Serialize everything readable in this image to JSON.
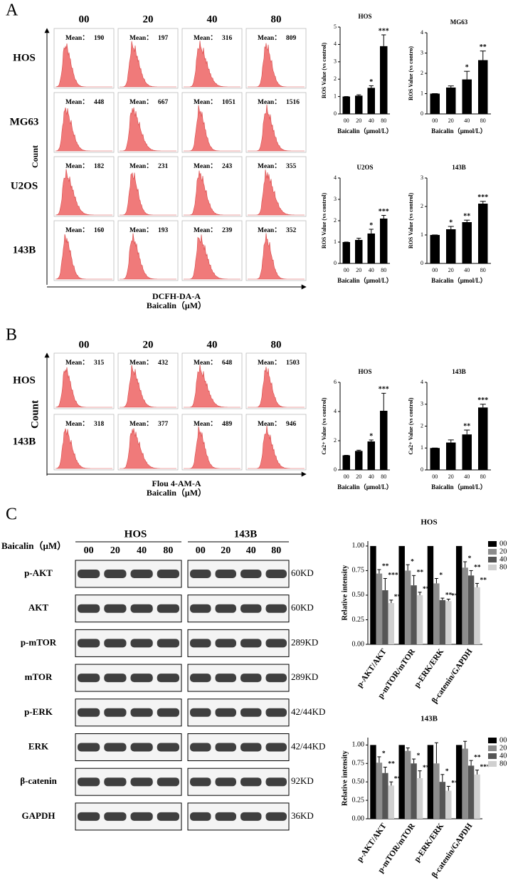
{
  "panel_labels": [
    "A",
    "B",
    "C"
  ],
  "mean_label": "Mean：",
  "flow_cytometry": [
    {
      "columns": [
        "00",
        "20",
        "40",
        "80"
      ],
      "rows": [
        {
          "name": "HOS",
          "means": [
            190,
            197,
            316,
            809
          ]
        },
        {
          "name": "MG63",
          "means": [
            448,
            667,
            1051,
            1516
          ]
        },
        {
          "name": "U2OS",
          "means": [
            182,
            231,
            243,
            355
          ]
        },
        {
          "name": "143B",
          "means": [
            160,
            193,
            239,
            352
          ]
        }
      ],
      "ylabel": "Count",
      "xlabel": "DCFH-DA-A",
      "xlabel2": "Baicalin（μM）"
    },
    {
      "columns": [
        "00",
        "20",
        "40",
        "80"
      ],
      "rows": [
        {
          "name": "HOS",
          "means": [
            315,
            432,
            648,
            1503
          ]
        },
        {
          "name": "143B",
          "means": [
            318,
            377,
            489,
            946
          ]
        }
      ],
      "ylabel": "Count",
      "xlabel": "Flou 4-AM-A",
      "xlabel2": "Baicalin（μM）"
    }
  ],
  "blots": {
    "treatment_label": "Baicalin（μM）",
    "groups": [
      "HOS",
      "143B"
    ],
    "lanes": [
      "00",
      "20",
      "40",
      "80"
    ],
    "proteins": [
      "p-AKT",
      "AKT",
      "p-mTOR",
      "mTOR",
      "p-ERK",
      "ERK",
      "β-catenin",
      "GAPDH"
    ],
    "sizes": [
      "60KD",
      "60KD",
      "289KD",
      "289KD",
      "42/44KD",
      "42/44KD",
      "92KD",
      "36KD"
    ]
  },
  "chart_data": [
    {
      "type": "bar",
      "title": "HOS",
      "ylabel": "ROS Value (vs control)",
      "xlabel": "Baicalin（μmol/L）",
      "categories": [
        "00",
        "20",
        "40",
        "80"
      ],
      "values": [
        1,
        1.05,
        1.5,
        3.9
      ],
      "errors": [
        0,
        0.05,
        0.12,
        0.65
      ],
      "annotations": [
        null,
        null,
        "*",
        "***"
      ],
      "color": "#000000",
      "ylim": [
        0,
        5
      ],
      "yticks": [
        0,
        1,
        2,
        3,
        4,
        5
      ]
    },
    {
      "type": "bar",
      "title": "MG63",
      "ylabel": "ROS Value (vs contro)",
      "xlabel": "Baicalin（μmol/L）",
      "categories": [
        "00",
        "20",
        "40",
        "80"
      ],
      "values": [
        1,
        1.3,
        1.7,
        2.65
      ],
      "errors": [
        0,
        0.08,
        0.4,
        0.45
      ],
      "annotations": [
        null,
        null,
        "*",
        "**"
      ],
      "color": "#000000",
      "ylim": [
        0,
        4
      ],
      "yticks": [
        0,
        1,
        2,
        3,
        4
      ]
    },
    {
      "type": "bar",
      "title": "U2OS",
      "ylabel": "ROS Value (vs control)",
      "xlabel": "Baicalin（μmol/L）",
      "categories": [
        "00",
        "20",
        "40",
        "80"
      ],
      "values": [
        1,
        1.1,
        1.4,
        2.1
      ],
      "errors": [
        0,
        0.08,
        0.2,
        0.15
      ],
      "annotations": [
        null,
        null,
        "*",
        "***"
      ],
      "color": "#000000",
      "ylim": [
        0,
        4
      ],
      "yticks": [
        0,
        1,
        2,
        3,
        4
      ]
    },
    {
      "type": "bar",
      "title": "143B",
      "ylabel": "ROS Value (vs control)",
      "xlabel": "Baicalin（μmol/L）",
      "categories": [
        "00",
        "20",
        "40",
        "80"
      ],
      "values": [
        1,
        1.2,
        1.45,
        2.1
      ],
      "errors": [
        0,
        0.1,
        0.07,
        0.08
      ],
      "annotations": [
        null,
        "*",
        "**",
        "***"
      ],
      "color": "#000000",
      "ylim": [
        0,
        3
      ],
      "yticks": [
        0,
        1,
        2,
        3
      ]
    },
    {
      "type": "bar",
      "title": "HOS",
      "ylabel": "Ca2+ Value (vs control)",
      "xlabel": "Baicalin（μmol/L）",
      "categories": [
        "00",
        "20",
        "40",
        "80"
      ],
      "values": [
        1,
        1.3,
        1.95,
        4.05
      ],
      "errors": [
        0,
        0.05,
        0.1,
        1.2
      ],
      "annotations": [
        null,
        null,
        "*",
        "***"
      ],
      "color": "#000000",
      "ylim": [
        0,
        6
      ],
      "yticks": [
        0,
        2,
        4,
        6
      ]
    },
    {
      "type": "bar",
      "title": "143B",
      "ylabel": "Ca2+ Value (vs control)",
      "xlabel": "Baicalin（μmol/L）",
      "categories": [
        "00",
        "20",
        "40",
        "80"
      ],
      "values": [
        1,
        1.25,
        1.62,
        2.85
      ],
      "errors": [
        0,
        0.12,
        0.2,
        0.15
      ],
      "annotations": [
        null,
        null,
        "**",
        "***"
      ],
      "color": "#000000",
      "ylim": [
        0,
        4
      ],
      "yticks": [
        0,
        1,
        2,
        3,
        4
      ]
    },
    {
      "type": "grouped_bar",
      "title": "HOS",
      "ylabel": "Relative intensity",
      "categories": [
        "p-AKT/AKT",
        "p-mTOR/mTOR",
        "p-ERK/ERK",
        "β-catenin/GAPDH"
      ],
      "series": [
        {
          "name": "00",
          "color": "#000000",
          "values": [
            1,
            1,
            1,
            1
          ],
          "errors": [
            0,
            0,
            0,
            0
          ],
          "annotations": [
            null,
            null,
            null,
            null
          ]
        },
        {
          "name": "20",
          "color": "#8c8c8c",
          "values": [
            0.72,
            0.75,
            0.62,
            0.78
          ],
          "errors": [
            0.04,
            0.06,
            0.05,
            0.06
          ],
          "annotations": [
            "**",
            "*",
            "*",
            "*"
          ]
        },
        {
          "name": "40",
          "color": "#555555",
          "values": [
            0.55,
            0.6,
            0.45,
            0.7
          ],
          "errors": [
            0.12,
            0.1,
            0.02,
            0.05
          ],
          "annotations": [
            "***",
            "**",
            "**",
            "**"
          ]
        },
        {
          "name": "80",
          "color": "#d0d0d0",
          "values": [
            0.42,
            0.5,
            0.44,
            0.58
          ],
          "errors": [
            0.03,
            0.03,
            0.02,
            0.04
          ],
          "annotations": [
            "***",
            "***",
            "**",
            "**"
          ]
        }
      ],
      "ylim": [
        0,
        1.05
      ],
      "yticks": [
        {
          "value": 0,
          "label": "0.00"
        },
        {
          "value": 0.25,
          "label": "0.25"
        },
        {
          "value": 0.5,
          "label": "0.50"
        },
        {
          "value": 0.75,
          "label": "0.75"
        },
        {
          "value": 1,
          "label": "1.00"
        }
      ],
      "legend": "top-right"
    },
    {
      "type": "grouped_bar",
      "title": "143B",
      "ylabel": "Relative intensity",
      "categories": [
        "p-AKT/AKT",
        "p-mTOR/mTOR",
        "p-ERK/ERK",
        "β-catenin/GAPDH"
      ],
      "series": [
        {
          "name": "00",
          "color": "#000000",
          "values": [
            1,
            1,
            1,
            1
          ],
          "errors": [
            0,
            0,
            0,
            0
          ],
          "annotations": [
            null,
            null,
            null,
            null
          ]
        },
        {
          "name": "20",
          "color": "#8c8c8c",
          "values": [
            0.76,
            0.92,
            0.75,
            0.95
          ],
          "errors": [
            0.08,
            0.04,
            0.28,
            0.1
          ],
          "annotations": [
            "*",
            null,
            null,
            null
          ]
        },
        {
          "name": "40",
          "color": "#555555",
          "values": [
            0.62,
            0.75,
            0.5,
            0.72
          ],
          "errors": [
            0.08,
            0.06,
            0.1,
            0.07
          ],
          "annotations": [
            "**",
            "*",
            "*",
            "**"
          ]
        },
        {
          "name": "80",
          "color": "#d0d0d0",
          "values": [
            0.45,
            0.55,
            0.38,
            0.6
          ],
          "errors": [
            0.05,
            0.1,
            0.06,
            0.06
          ],
          "annotations": [
            "***",
            "**",
            "**",
            "***"
          ]
        }
      ],
      "ylim": [
        0,
        1.1
      ],
      "yticks": [
        {
          "value": 0,
          "label": "0.00"
        },
        {
          "value": 0.25,
          "label": "0.25"
        },
        {
          "value": 0.5,
          "label": "0.50"
        },
        {
          "value": 0.75,
          "label": "0.75"
        },
        {
          "value": 1,
          "label": "1.00"
        }
      ],
      "legend": "top-right"
    }
  ]
}
